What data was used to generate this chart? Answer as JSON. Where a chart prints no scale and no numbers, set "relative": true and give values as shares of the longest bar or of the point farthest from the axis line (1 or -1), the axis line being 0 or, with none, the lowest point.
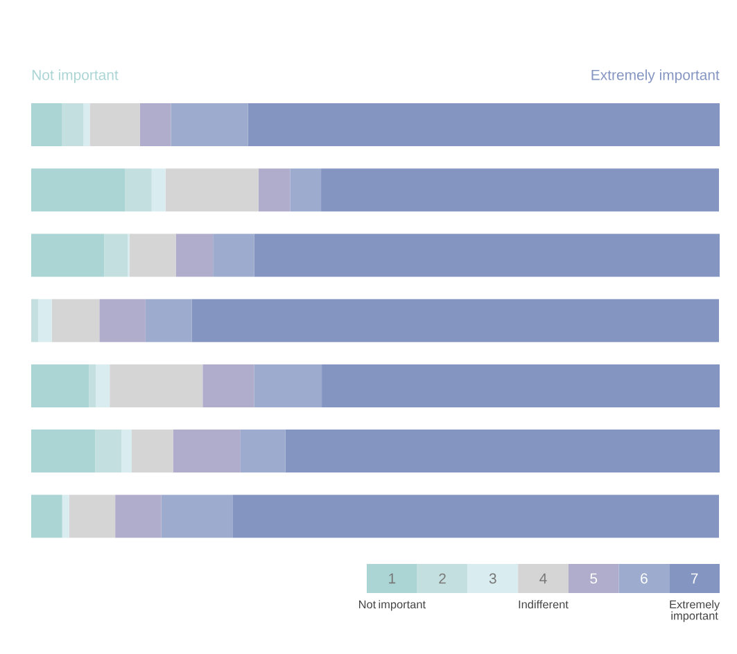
{
  "chart_data": {
    "type": "bar",
    "orientation": "horizontal",
    "stacked": true,
    "relative": true,
    "legend": "bottom right",
    "categories": [
      null,
      null,
      null,
      null,
      null,
      null,
      null
    ],
    "series": [
      {
        "name": "1",
        "color": "#aad5d4",
        "values": [
          0.045,
          0.136,
          0.106,
          0,
          0.084,
          0.093,
          0.045
        ]
      },
      {
        "name": "2",
        "color": "#c4dfdf",
        "values": [
          0.031,
          0.039,
          0.034,
          0.01,
          0.01,
          0.038,
          0
        ]
      },
      {
        "name": "3",
        "color": "#d9ecef",
        "values": [
          0.009,
          0.02,
          0.003,
          0.02,
          0.02,
          0.015,
          0.01
        ]
      },
      {
        "name": "4",
        "color": "#d5d5d5",
        "values": [
          0.073,
          0.135,
          0.067,
          0.069,
          0.135,
          0.06,
          0.067
        ]
      },
      {
        "name": "5",
        "color": "#b0adcc",
        "values": [
          0.045,
          0.046,
          0.054,
          0.067,
          0.075,
          0.098,
          0.067
        ]
      },
      {
        "name": "6",
        "color": "#9dacce",
        "values": [
          0.112,
          0.045,
          0.06,
          0.067,
          0.098,
          0.065,
          0.104
        ]
      },
      {
        "name": "7",
        "color": "#8495c1",
        "values": [
          0.685,
          0.578,
          0.676,
          0.766,
          0.578,
          0.631,
          0.706
        ]
      }
    ],
    "annotations": [
      "Not important",
      "Extremely important",
      "Not important",
      "Indifferent",
      "Extremely important"
    ]
  }
}
